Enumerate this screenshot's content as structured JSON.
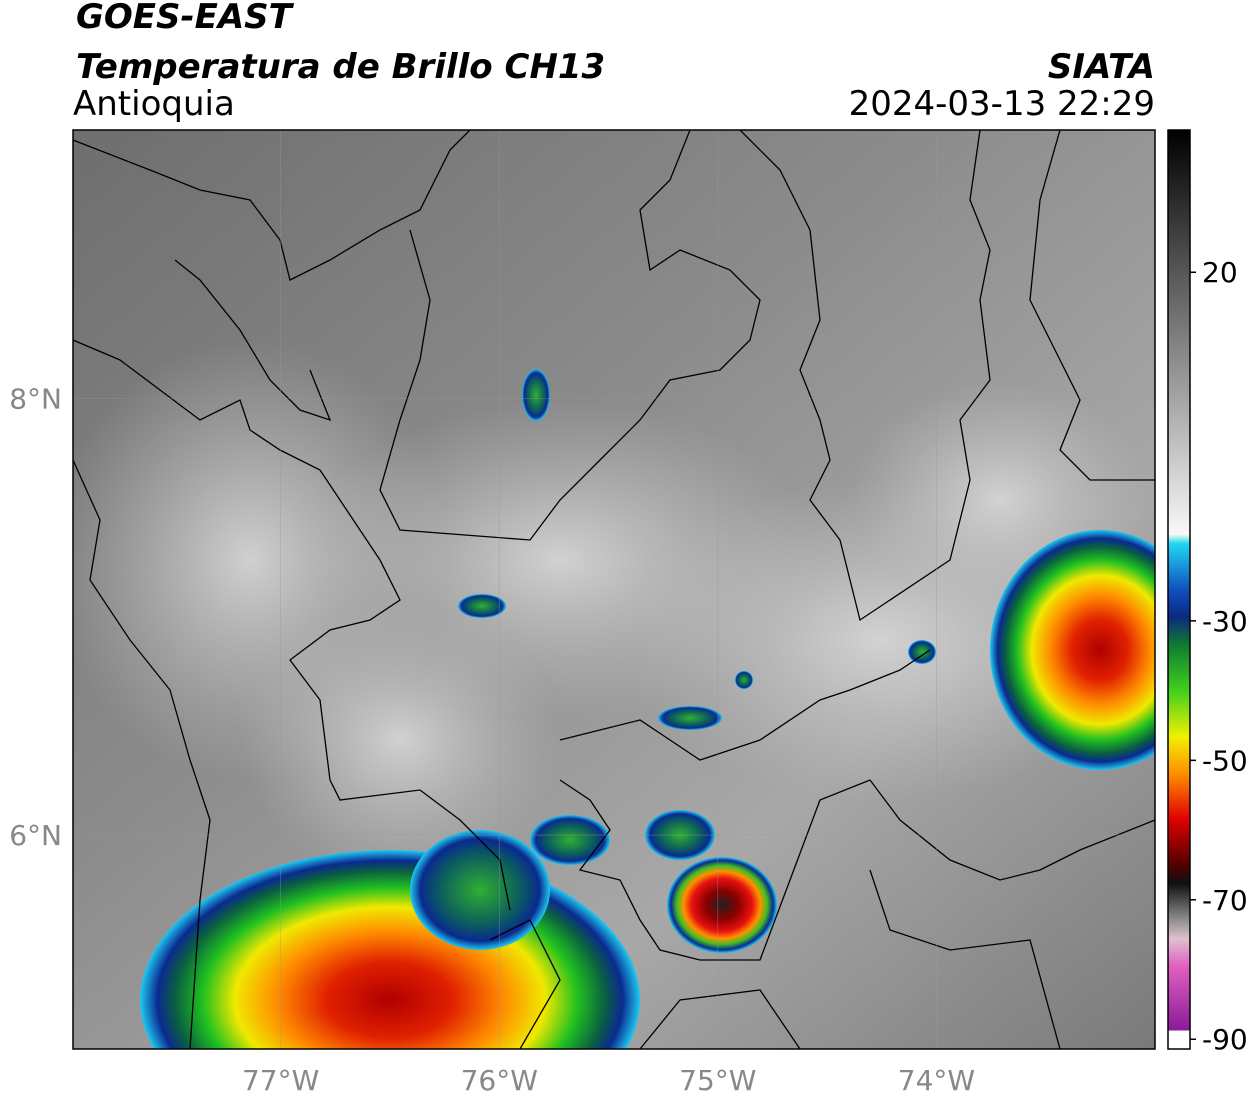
{
  "header": {
    "satellite": "GOES-EAST",
    "product": "Temperatura de Brillo CH13",
    "region": "Antioquia",
    "source": "SIATA",
    "datetime": "2024-03-13 22:29"
  },
  "map": {
    "xlim": [
      -77.95,
      -73.0
    ],
    "ylim": [
      5.02,
      9.23
    ],
    "xticks": [
      {
        "value": -77,
        "label": "77°W"
      },
      {
        "value": -76,
        "label": "76°W"
      },
      {
        "value": -75,
        "label": "75°W"
      },
      {
        "value": -74,
        "label": "74°W"
      }
    ],
    "yticks": [
      {
        "value": 6,
        "label": "6°N"
      },
      {
        "value": 8,
        "label": "8°N"
      }
    ],
    "grid": true
  },
  "colorbar": {
    "lim": [
      -91.4,
      40.4
    ],
    "ticks": [
      20,
      -30,
      -50,
      -70,
      -90
    ]
  }
}
